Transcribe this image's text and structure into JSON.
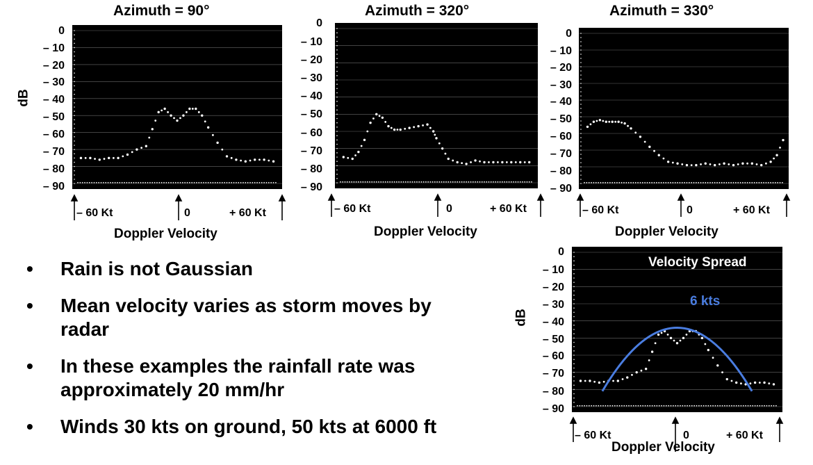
{
  "ylabel": "dB",
  "xlabel": "Doppler Velocity",
  "x_tick_labels": [
    "– 60 Kt",
    "0",
    "+ 60 Kt"
  ],
  "y_tick_labels": [
    "0",
    "– 10",
    "– 20",
    "– 30",
    "– 40",
    "– 50",
    "– 60",
    "– 70",
    "– 80",
    "– 90"
  ],
  "chart_data": [
    {
      "type": "scatter",
      "title": "Azimuth = 90°",
      "xlabel": "Doppler Velocity",
      "ylabel": "dB",
      "xlim": [
        -60,
        60
      ],
      "ylim": [
        -90,
        0
      ],
      "x": [
        -62,
        -56,
        -50,
        -44,
        -38,
        -32,
        -26,
        -20,
        -16,
        -12,
        -8,
        -4,
        0,
        4,
        8,
        12,
        16,
        20,
        26,
        32,
        38,
        44,
        50,
        56,
        62
      ],
      "y": [
        -75,
        -75,
        -76,
        -75,
        -75,
        -73,
        -70,
        -68,
        -58,
        -48,
        -46,
        -50,
        -53,
        -50,
        -46,
        -46,
        -50,
        -57,
        -66,
        -74,
        -76,
        -77,
        -76,
        -76,
        -77
      ]
    },
    {
      "type": "scatter",
      "title": "Azimuth = 320°",
      "xlabel": "Doppler Velocity",
      "ylabel": "dB",
      "xlim": [
        -60,
        60
      ],
      "ylim": [
        -90,
        0
      ],
      "x": [
        -62,
        -56,
        -52,
        -48,
        -44,
        -40,
        -36,
        -32,
        -28,
        -24,
        -18,
        -12,
        -6,
        -2,
        0,
        4,
        8,
        14,
        20,
        26,
        32,
        38,
        44,
        50,
        56,
        62
      ],
      "y": [
        -75,
        -76,
        -72,
        -65,
        -55,
        -50,
        -52,
        -57,
        -59,
        -59,
        -58,
        -57,
        -56,
        -60,
        -64,
        -70,
        -76,
        -78,
        -79,
        -77,
        -78,
        -78,
        -78,
        -78,
        -78,
        -78
      ]
    },
    {
      "type": "scatter",
      "title": "Azimuth = 330°",
      "xlabel": "Doppler Velocity",
      "ylabel": "dB",
      "xlim": [
        -60,
        60
      ],
      "ylim": [
        -90,
        0
      ],
      "x": [
        -62,
        -58,
        -54,
        -50,
        -46,
        -42,
        -38,
        -34,
        -28,
        -22,
        -16,
        -10,
        -4,
        2,
        8,
        14,
        20,
        26,
        32,
        38,
        44,
        50,
        56,
        60,
        64
      ],
      "y": [
        -56,
        -53,
        -52,
        -53,
        -53,
        -53,
        -54,
        -57,
        -62,
        -68,
        -73,
        -77,
        -78,
        -79,
        -79,
        -78,
        -79,
        -78,
        -79,
        -78,
        -78,
        -79,
        -77,
        -73,
        -64
      ]
    },
    {
      "type": "scatter",
      "title": "Velocity Spread",
      "annotation": "6 kts",
      "xlabel": "Doppler Velocity",
      "ylabel": "dB",
      "xlim": [
        -60,
        60
      ],
      "ylim": [
        -90,
        0
      ],
      "x": [
        -62,
        -56,
        -50,
        -44,
        -38,
        -32,
        -26,
        -20,
        -16,
        -12,
        -8,
        -4,
        0,
        4,
        8,
        12,
        16,
        20,
        26,
        32,
        38,
        44,
        50,
        56,
        62
      ],
      "y": [
        -75,
        -75,
        -76,
        -75,
        -75,
        -73,
        -70,
        -68,
        -58,
        -48,
        -46,
        -50,
        -53,
        -50,
        -46,
        -46,
        -50,
        -57,
        -66,
        -74,
        -76,
        -77,
        -76,
        -76,
        -77
      ],
      "fit_curve_color": "#4a7de0"
    }
  ],
  "bullets": [
    "Rain is not Gaussian",
    "Mean velocity varies as storm moves by radar",
    "In these examples the rainfall rate was approximately 20 mm/hr",
    "Winds 30 kts on ground, 50 kts at 6000 ft"
  ],
  "colors": {
    "plot_bg": "#000000",
    "dots": "#ffffff",
    "grid": "#6a6a6a",
    "accent": "#4a7de0"
  }
}
